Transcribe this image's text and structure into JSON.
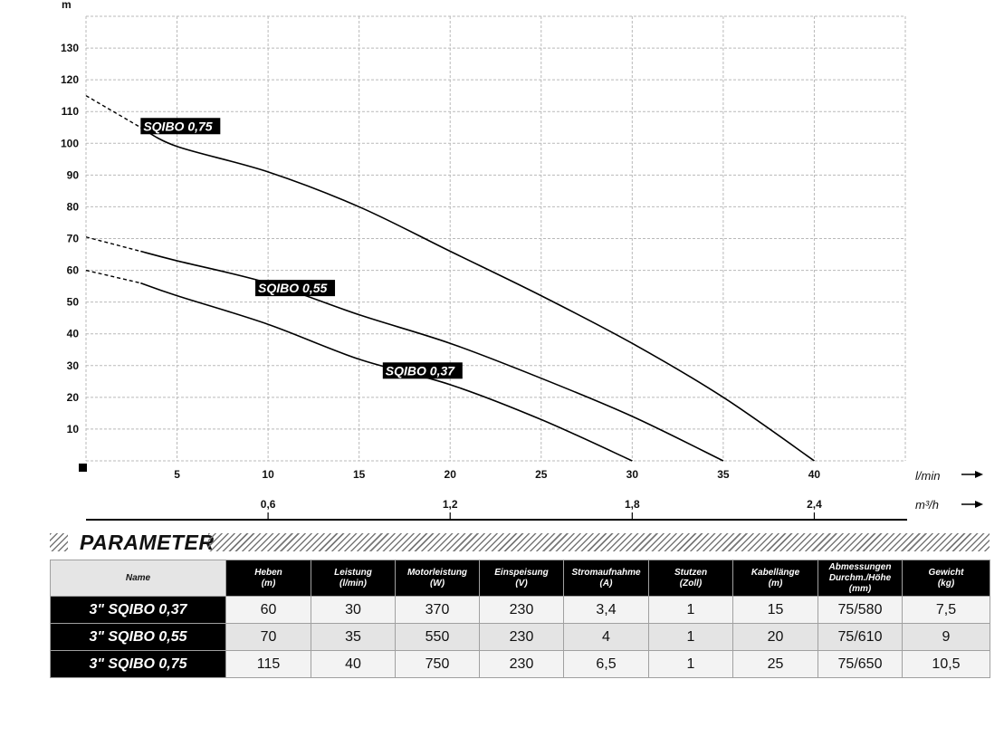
{
  "chart_data": {
    "type": "line",
    "ylabel": "m",
    "x_unit_primary": "l/min",
    "x_unit_secondary": "m³/h",
    "xlim": [
      0,
      45
    ],
    "ylim": [
      0,
      140
    ],
    "x_ticks": [
      5,
      10,
      15,
      20,
      25,
      30,
      35,
      40
    ],
    "x_tick_labels": [
      "5",
      "10",
      "15",
      "20",
      "25",
      "30",
      "35",
      "40"
    ],
    "x_secondary_ticks": [
      10,
      20,
      30,
      40
    ],
    "x_secondary_tick_labels": [
      "0,6",
      "1,2",
      "1,8",
      "2,4"
    ],
    "y_ticks": [
      10,
      20,
      30,
      40,
      50,
      60,
      70,
      80,
      90,
      100,
      110,
      120,
      130
    ],
    "y_tick_labels": [
      "10",
      "20",
      "30",
      "40",
      "50",
      "60",
      "70",
      "80",
      "90",
      "100",
      "110",
      "120",
      "130"
    ],
    "grid": true,
    "series": [
      {
        "name": "SQIBO 0,75",
        "label_at": [
          3,
          104
        ],
        "dashed_until": 3,
        "points": [
          [
            0,
            115
          ],
          [
            3,
            105
          ],
          [
            5,
            99
          ],
          [
            10,
            91
          ],
          [
            15,
            80
          ],
          [
            20,
            66
          ],
          [
            25,
            52
          ],
          [
            30,
            37
          ],
          [
            35,
            20
          ],
          [
            40,
            0
          ]
        ]
      },
      {
        "name": "SQIBO 0,55",
        "label_at": [
          9.3,
          53
        ],
        "dashed_until": 3,
        "points": [
          [
            0,
            70.5
          ],
          [
            3,
            66
          ],
          [
            5,
            63
          ],
          [
            10,
            56
          ],
          [
            15,
            46
          ],
          [
            20,
            37
          ],
          [
            25,
            26
          ],
          [
            30,
            14
          ],
          [
            35,
            0
          ]
        ]
      },
      {
        "name": "SQIBO 0,37",
        "label_at": [
          16.3,
          27
        ],
        "dashed_until": 3,
        "points": [
          [
            0,
            60
          ],
          [
            3,
            56
          ],
          [
            5,
            52
          ],
          [
            10,
            43
          ],
          [
            15,
            32
          ],
          [
            20,
            24
          ],
          [
            25,
            13
          ],
          [
            30,
            0
          ]
        ]
      }
    ]
  },
  "parameter": {
    "title": "PARAMETER",
    "headers": [
      {
        "line1": "Name",
        "line2": "",
        "line3": ""
      },
      {
        "line1": "Heben",
        "line2": "(m)",
        "line3": ""
      },
      {
        "line1": "Leistung",
        "line2": "(l/min)",
        "line3": ""
      },
      {
        "line1": "Motorleistung",
        "line2": "(W)",
        "line3": ""
      },
      {
        "line1": "Einspeisung",
        "line2": "(V)",
        "line3": ""
      },
      {
        "line1": "Stromaufnahme",
        "line2": "(A)",
        "line3": ""
      },
      {
        "line1": "Stutzen",
        "line2": "(Zoll)",
        "line3": ""
      },
      {
        "line1": "Kabellänge",
        "line2": "(m)",
        "line3": ""
      },
      {
        "line1": "Abmessungen",
        "line2": "Durchm./Höhe",
        "line3": "(mm)"
      },
      {
        "line1": "Gewicht",
        "line2": "(kg)",
        "line3": ""
      }
    ],
    "rows": [
      {
        "name": "3\" SQIBO 0,37",
        "cells": [
          "60",
          "30",
          "370",
          "230",
          "3,4",
          "1",
          "15",
          "75/580",
          "7,5"
        ]
      },
      {
        "name": "3\" SQIBO 0,55",
        "cells": [
          "70",
          "35",
          "550",
          "230",
          "4",
          "1",
          "20",
          "75/610",
          "9"
        ]
      },
      {
        "name": "3\" SQIBO 0,75",
        "cells": [
          "115",
          "40",
          "750",
          "230",
          "6,5",
          "1",
          "25",
          "75/650",
          "10,5"
        ]
      }
    ]
  }
}
